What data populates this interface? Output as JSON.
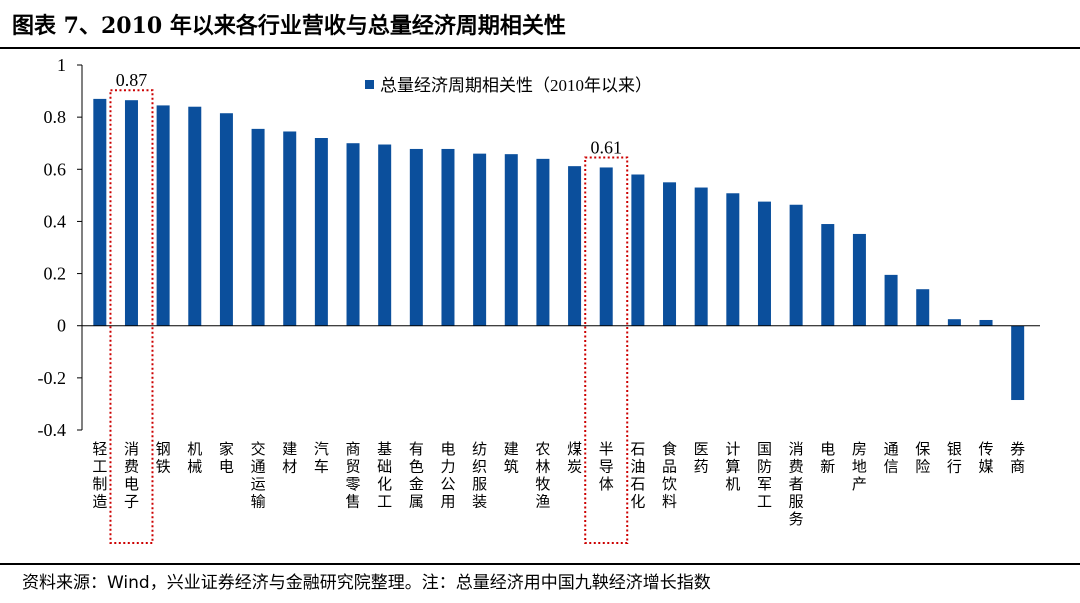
{
  "title": "图表 7、2010 年以来各行业营收与总量经济周期相关性",
  "source": "资料来源：Wind，兴业证券经济与金融研究院整理。注：总量经济用中国九鞅经济增长指数",
  "colors": {
    "bar": "#0b4f9c",
    "highlight": "#cc0000",
    "axis": "#000000"
  },
  "chart_data": {
    "type": "bar",
    "categories": [
      "轻工制造",
      "消费电子",
      "钢铁",
      "机械",
      "家电",
      "交通运输",
      "建材",
      "汽车",
      "商贸零售",
      "基础化工",
      "有色金属",
      "电力公用",
      "纺织服装",
      "建筑",
      "农林牧渔",
      "煤炭",
      "半导体",
      "石油石化",
      "食品饮料",
      "医药",
      "计算机",
      "国防军工",
      "消费者服务",
      "电新",
      "房地产",
      "通信",
      "保险",
      "银行",
      "传媒",
      "券商"
    ],
    "series": [
      {
        "name": "总量经济周期相关性（2010年以来）",
        "values": [
          0.87,
          0.865,
          0.845,
          0.84,
          0.815,
          0.755,
          0.745,
          0.72,
          0.7,
          0.695,
          0.678,
          0.678,
          0.66,
          0.658,
          0.64,
          0.612,
          0.607,
          0.58,
          0.55,
          0.53,
          0.508,
          0.476,
          0.464,
          0.39,
          0.352,
          0.195,
          0.14,
          0.025,
          0.022,
          -0.285
        ]
      }
    ],
    "ylim": [
      -0.4,
      1
    ],
    "yticks": [
      "-0.4",
      "-0.2",
      "0",
      "0.2",
      "0.4",
      "0.6",
      "0.8",
      "1"
    ],
    "legend_position": "top-center",
    "annotations": [
      {
        "category": "消费电子",
        "label": "0.87"
      },
      {
        "category": "半导体",
        "label": "0.61"
      }
    ]
  }
}
